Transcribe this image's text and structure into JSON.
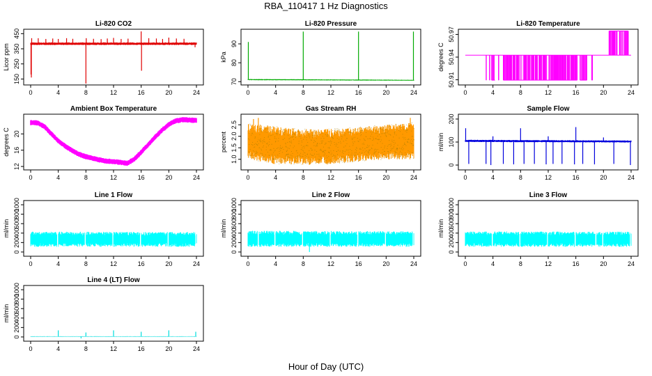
{
  "title": "RBA_110417  1 Hz Diagnostics",
  "xlabel": "Hour of Day (UTC)",
  "chart_data": [
    {
      "type": "line",
      "title": "Li-820 CO2",
      "ylabel": "Licor ppm",
      "color": "#e00000",
      "xlim": [
        0,
        24
      ],
      "ylim": [
        120,
        470
      ],
      "yticks": [
        150,
        250,
        350,
        450
      ],
      "ytick_labels": [
        "150",
        "250",
        "350",
        "450"
      ],
      "band": {
        "low": [
          [
            0,
            375
          ],
          [
            24,
            375
          ]
        ],
        "high": [
          [
            0,
            392
          ],
          [
            24,
            392
          ]
        ]
      },
      "spikes": [
        {
          "x": 0.05,
          "y": 180
        },
        {
          "x": 0.1,
          "y": 160
        },
        {
          "x": 0.15,
          "y": 420
        },
        {
          "x": 1.1,
          "y": 420
        },
        {
          "x": 2.2,
          "y": 415
        },
        {
          "x": 3.2,
          "y": 418
        },
        {
          "x": 4.0,
          "y": 415
        },
        {
          "x": 5.2,
          "y": 420
        },
        {
          "x": 6.1,
          "y": 416
        },
        {
          "x": 8.0,
          "y": 120
        },
        {
          "x": 8.05,
          "y": 420
        },
        {
          "x": 9.1,
          "y": 416
        },
        {
          "x": 10.2,
          "y": 414
        },
        {
          "x": 11.1,
          "y": 418
        },
        {
          "x": 12.0,
          "y": 422
        },
        {
          "x": 13.1,
          "y": 415
        },
        {
          "x": 14.1,
          "y": 417
        },
        {
          "x": 16.0,
          "y": 465
        },
        {
          "x": 16.05,
          "y": 205
        },
        {
          "x": 17.1,
          "y": 420
        },
        {
          "x": 18.2,
          "y": 418
        },
        {
          "x": 19.1,
          "y": 415
        },
        {
          "x": 20.0,
          "y": 424
        },
        {
          "x": 21.1,
          "y": 418
        },
        {
          "x": 22.2,
          "y": 416
        },
        {
          "x": 23.8,
          "y": 360
        }
      ]
    },
    {
      "type": "line",
      "title": "Li-820 Pressure",
      "ylabel": "kPa",
      "color": "#00aa00",
      "xlim": [
        0,
        24
      ],
      "ylim": [
        69,
        97
      ],
      "yticks": [
        70,
        80,
        90
      ],
      "ytick_labels": [
        "70",
        "80",
        "90"
      ],
      "band": {
        "low": [
          [
            0,
            70.8
          ],
          [
            24,
            70.5
          ]
        ],
        "high": [
          [
            0,
            71.4
          ],
          [
            24,
            71.0
          ]
        ]
      },
      "spikes": [
        {
          "x": 0.05,
          "y": 91
        },
        {
          "x": 8.0,
          "y": 96.5
        },
        {
          "x": 16.0,
          "y": 96.5
        },
        {
          "x": 23.95,
          "y": 96.5
        }
      ]
    },
    {
      "type": "line",
      "title": "Li-820 Temperature",
      "ylabel": "degrees C",
      "color": "#ff00ff",
      "xlim": [
        0,
        24
      ],
      "ylim": [
        50.905,
        50.975
      ],
      "yticks": [
        50.91,
        50.94,
        50.97
      ],
      "ytick_labels": [
        "50.91",
        "50.94",
        "50.97"
      ],
      "base": 50.9425,
      "segments": [
        {
          "x0": 3.0,
          "x1": 3.05,
          "dir": "down"
        },
        {
          "x0": 3.5,
          "x1": 3.55,
          "dir": "down"
        },
        {
          "x0": 3.8,
          "x1": 4.3,
          "dir": "down"
        },
        {
          "x0": 4.8,
          "x1": 4.85,
          "dir": "down"
        },
        {
          "x0": 5.5,
          "x1": 16.2,
          "dir": "down"
        },
        {
          "x0": 16.6,
          "x1": 17.6,
          "dir": "down"
        },
        {
          "x0": 18.3,
          "x1": 18.4,
          "dir": "down"
        },
        {
          "x0": 20.8,
          "x1": 23.6,
          "dir": "up"
        }
      ],
      "top": 50.9745,
      "bottom": 50.9095
    },
    {
      "type": "line",
      "title": "Ambient Box Temperature",
      "ylabel": "degrees C",
      "color": "#ff00ff",
      "xlim": [
        0,
        24
      ],
      "ylim": [
        11.5,
        24.5
      ],
      "yticks": [
        12,
        16,
        20
      ],
      "ytick_labels": [
        "12",
        "16",
        "20"
      ],
      "curve": [
        [
          0,
          22.8
        ],
        [
          1,
          22.7
        ],
        [
          2,
          21.8
        ],
        [
          3,
          20.0
        ],
        [
          4,
          18.3
        ],
        [
          5,
          17.0
        ],
        [
          6,
          15.9
        ],
        [
          7,
          15.0
        ],
        [
          8,
          14.4
        ],
        [
          9,
          14.0
        ],
        [
          10,
          13.6
        ],
        [
          11,
          13.3
        ],
        [
          12,
          13.2
        ],
        [
          13,
          13.0
        ],
        [
          14,
          12.8
        ],
        [
          15,
          13.8
        ],
        [
          16,
          15.5
        ],
        [
          17,
          17.3
        ],
        [
          18,
          19.2
        ],
        [
          19,
          20.9
        ],
        [
          20,
          22.3
        ],
        [
          21,
          23.2
        ],
        [
          22,
          23.5
        ],
        [
          23,
          23.4
        ],
        [
          24,
          23.3
        ]
      ],
      "width": 0.9
    },
    {
      "type": "line",
      "title": "Gas Stream RH",
      "ylabel": "percent",
      "color": "#ff9900",
      "color2": "#997700",
      "xlim": [
        0,
        24
      ],
      "ylim": [
        0.6,
        2.9
      ],
      "yticks": [
        1.0,
        1.5,
        2.0,
        2.5
      ],
      "ytick_labels": [
        "1.0",
        "1.5",
        "2.0",
        "2.5"
      ],
      "band": {
        "low": [
          [
            0,
            1.0
          ],
          [
            4,
            0.78
          ],
          [
            8,
            0.75
          ],
          [
            12,
            0.8
          ],
          [
            16,
            0.9
          ],
          [
            20,
            1.0
          ],
          [
            24,
            1.0
          ]
        ],
        "high": [
          [
            0,
            2.55
          ],
          [
            2,
            2.5
          ],
          [
            6,
            2.35
          ],
          [
            10,
            2.3
          ],
          [
            14,
            2.35
          ],
          [
            18,
            2.45
          ],
          [
            22,
            2.55
          ],
          [
            24,
            2.6
          ]
        ]
      },
      "spikes": [
        {
          "x": 0.8,
          "y": 2.75
        },
        {
          "x": 1.5,
          "y": 2.8
        },
        {
          "x": 23.5,
          "y": 2.8
        }
      ]
    },
    {
      "type": "line",
      "title": "Sample Flow",
      "ylabel": "ml/min",
      "color": "#0000dd",
      "xlim": [
        0,
        24
      ],
      "ylim": [
        -15,
        215
      ],
      "yticks": [
        0,
        100,
        200
      ],
      "ytick_labels": [
        "0",
        "100",
        "200"
      ],
      "band": {
        "low": [
          [
            0,
            100
          ],
          [
            24,
            98
          ]
        ],
        "high": [
          [
            0,
            110
          ],
          [
            24,
            107
          ]
        ]
      },
      "spikes": [
        {
          "x": 0.05,
          "y": 160
        },
        {
          "x": 0.5,
          "y": 5
        },
        {
          "x": 3.0,
          "y": 5
        },
        {
          "x": 3.7,
          "y": 0
        },
        {
          "x": 4.0,
          "y": 125
        },
        {
          "x": 5.5,
          "y": 5
        },
        {
          "x": 7.0,
          "y": 3
        },
        {
          "x": 8.0,
          "y": 160
        },
        {
          "x": 8.5,
          "y": 5
        },
        {
          "x": 10.0,
          "y": 5
        },
        {
          "x": 11.7,
          "y": 3
        },
        {
          "x": 12.0,
          "y": 125
        },
        {
          "x": 12.7,
          "y": 5
        },
        {
          "x": 14.0,
          "y": 5
        },
        {
          "x": 15.8,
          "y": 3
        },
        {
          "x": 16.0,
          "y": 165
        },
        {
          "x": 17.0,
          "y": 5
        },
        {
          "x": 18.7,
          "y": 3
        },
        {
          "x": 20.0,
          "y": 120
        },
        {
          "x": 21.5,
          "y": 5
        },
        {
          "x": 23.9,
          "y": 0
        }
      ]
    },
    {
      "type": "line",
      "title": "Line 1 Flow",
      "ylabel": "ml/min",
      "color": "#00ffff",
      "xlim": [
        0,
        24
      ],
      "ylim": [
        -60,
        1060
      ],
      "yticks": [
        0,
        200,
        400,
        600,
        800,
        1000
      ],
      "ytick_labels": [
        "0",
        "200",
        "400",
        "600",
        "800",
        "1000"
      ],
      "band": {
        "low": [
          [
            0,
            110
          ],
          [
            24,
            110
          ]
        ],
        "high": [
          [
            0,
            430
          ],
          [
            24,
            425
          ]
        ]
      },
      "gaps": [
        3.9,
        7.9,
        11.9,
        15.9,
        19.9,
        23.9
      ]
    },
    {
      "type": "line",
      "title": "Line 2 Flow",
      "ylabel": "ml/min",
      "color": "#00ffff",
      "xlim": [
        0,
        24
      ],
      "ylim": [
        -60,
        1060
      ],
      "yticks": [
        0,
        200,
        400,
        600,
        800,
        1000
      ],
      "ytick_labels": [
        "0",
        "200",
        "400",
        "600",
        "800",
        "1000"
      ],
      "band": {
        "low": [
          [
            0,
            110
          ],
          [
            24,
            110
          ]
        ],
        "high": [
          [
            0,
            450
          ],
          [
            24,
            440
          ]
        ]
      },
      "gaps": [
        1.5,
        3.9,
        7.9,
        11.9,
        15.9,
        19.9,
        23.9
      ],
      "spikes": [
        {
          "x": 8.9,
          "y": 0
        }
      ]
    },
    {
      "type": "line",
      "title": "Line 3 Flow",
      "ylabel": "ml/min",
      "color": "#00ffff",
      "xlim": [
        0,
        24
      ],
      "ylim": [
        -60,
        1060
      ],
      "yticks": [
        0,
        200,
        400,
        600,
        800,
        1000
      ],
      "ytick_labels": [
        "0",
        "200",
        "400",
        "600",
        "800",
        "1000"
      ],
      "band": {
        "low": [
          [
            0,
            110
          ],
          [
            24,
            110
          ]
        ],
        "high": [
          [
            0,
            435
          ],
          [
            24,
            430
          ]
        ]
      },
      "gaps": [
        3.9,
        7.9,
        11.9,
        15.9,
        18.9,
        19.9,
        23.9
      ]
    },
    {
      "type": "line",
      "title": "Line 4 (LT) Flow",
      "ylabel": "ml/min",
      "color": "#00dddd",
      "xlim": [
        0,
        24
      ],
      "ylim": [
        -60,
        1060
      ],
      "yticks": [
        0,
        200,
        400,
        600,
        800,
        1000
      ],
      "ytick_labels": [
        "0",
        "200",
        "400",
        "600",
        "800",
        "1000"
      ],
      "band": {
        "low": [
          [
            0,
            5
          ],
          [
            24,
            5
          ]
        ],
        "high": [
          [
            0,
            15
          ],
          [
            24,
            15
          ]
        ]
      },
      "spikes": [
        {
          "x": 4.0,
          "y": 140
        },
        {
          "x": 8.0,
          "y": 95
        },
        {
          "x": 12.0,
          "y": 140
        },
        {
          "x": 16.0,
          "y": 110
        },
        {
          "x": 20.0,
          "y": 140
        },
        {
          "x": 23.9,
          "y": 110
        },
        {
          "x": 7.3,
          "y": -30
        }
      ]
    }
  ],
  "xticks": [
    0,
    4,
    8,
    12,
    16,
    20,
    24
  ],
  "xtick_labels": [
    "0",
    "4",
    "8",
    "12",
    "16",
    "20",
    "24"
  ]
}
